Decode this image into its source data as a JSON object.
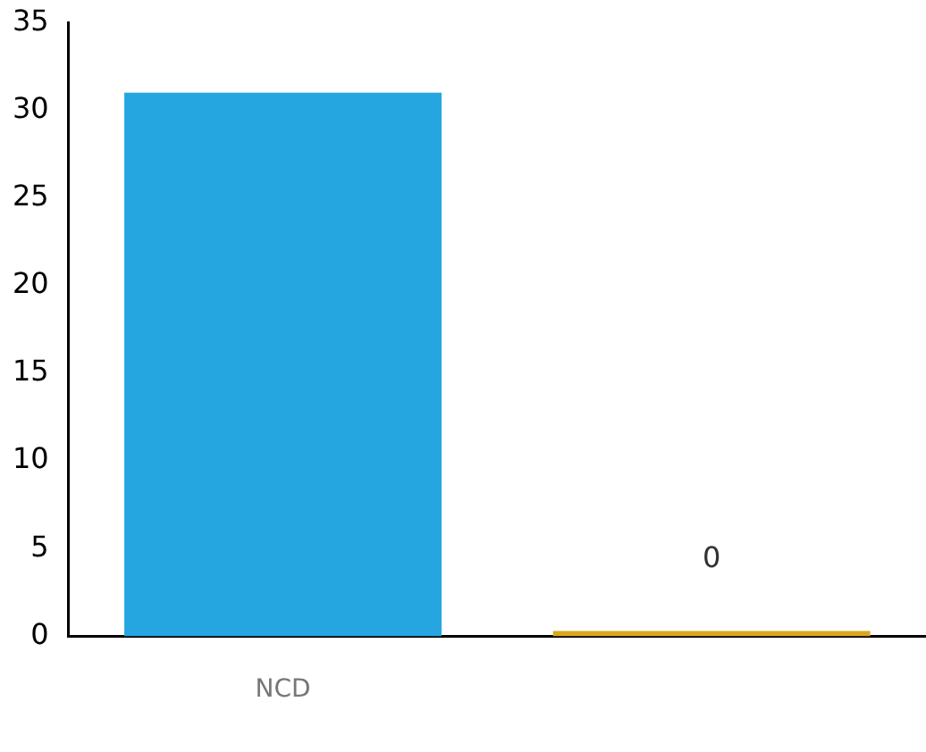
{
  "chart_data": {
    "type": "bar",
    "categories": [
      "NCD",
      null
    ],
    "values": [
      31,
      0.3
    ],
    "colors": [
      "#25a6e0",
      "#d9a820"
    ],
    "value_labels": [
      null,
      "0"
    ],
    "ylim": [
      0,
      35
    ],
    "yticks": [
      0,
      5,
      10,
      15,
      20,
      25,
      30,
      35
    ],
    "grid": false,
    "legend": false
  }
}
